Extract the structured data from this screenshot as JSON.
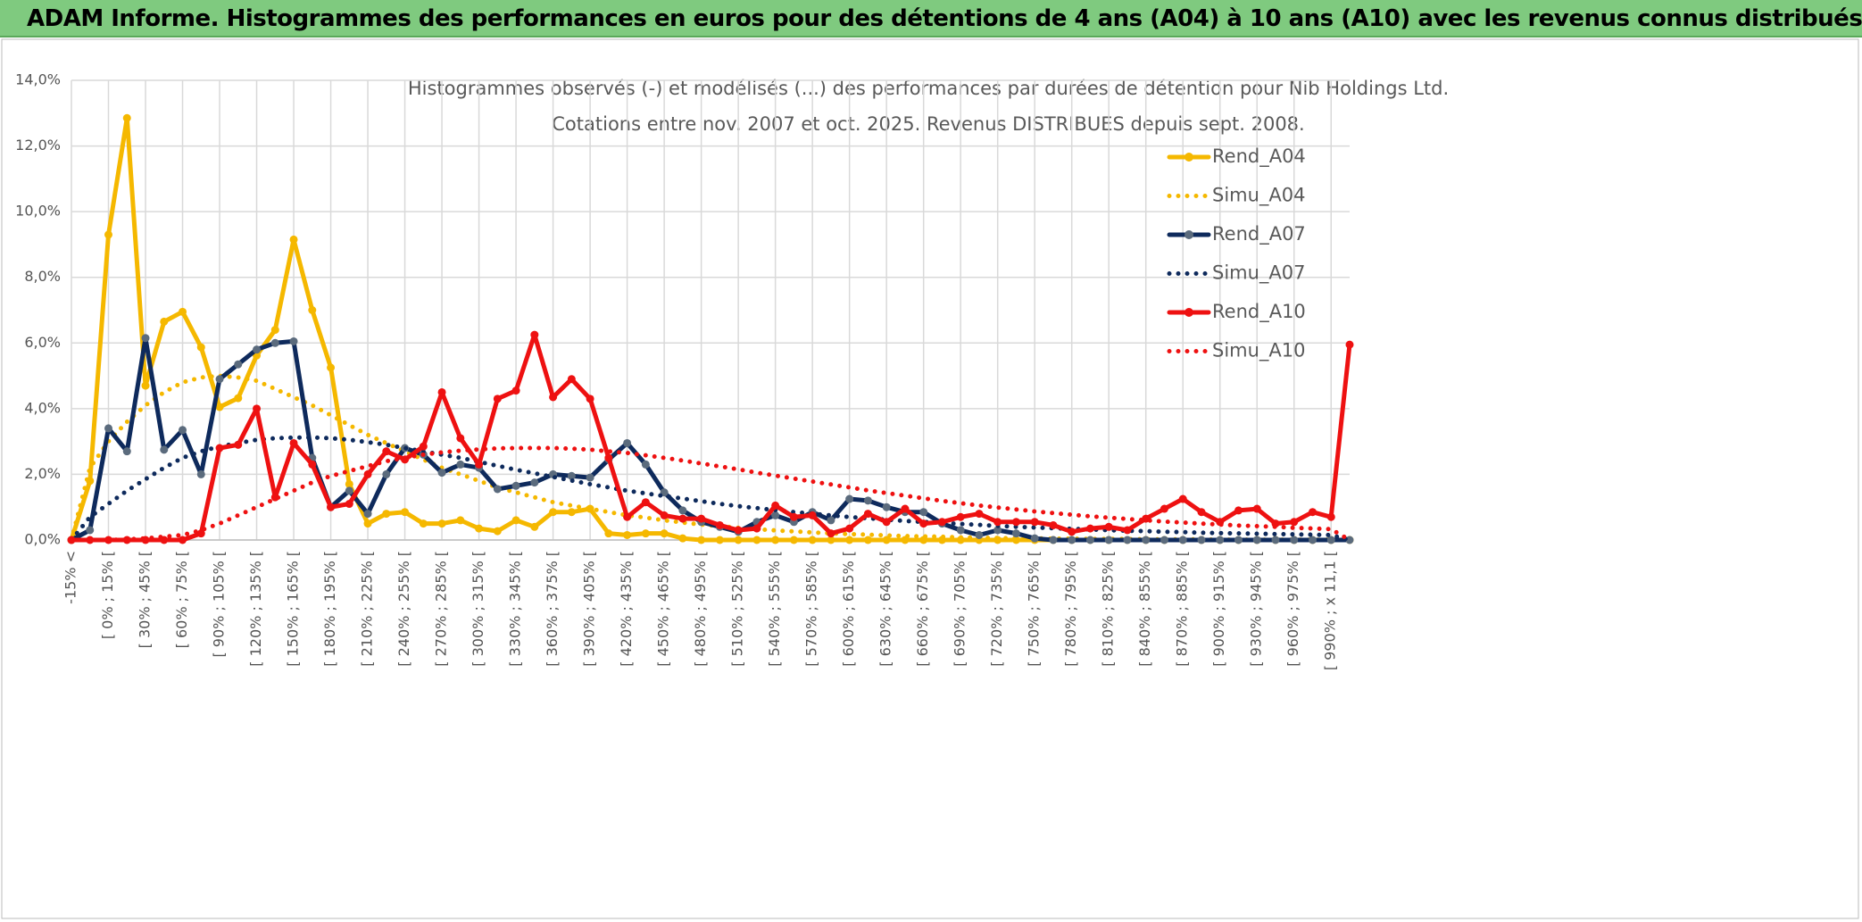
{
  "header": {
    "title": "ADAM Informe. Histogrammes des performances en euros pour des détentions de 4 ans (A04) à 10 ans (A10) avec les revenus connus distribués"
  },
  "chart_data": {
    "type": "line",
    "title": "Histogrammes observés (-) et modélisés (...) des performances par durées de détention pour Nib Holdings Ltd.",
    "subtitle": "Cotations entre nov. 2007 et oct. 2025. Revenus DISTRIBUES depuis sept. 2008.",
    "categories": [
      "-15% <",
      null,
      "[ 0% ; 15% [",
      null,
      "[ 30% ; 45% [",
      null,
      "[ 60% ; 75% [",
      null,
      "[ 90% ; 105% [",
      null,
      "[ 120% ; 135% [",
      null,
      "[ 150% ; 165% [",
      null,
      "[ 180% ; 195% [",
      null,
      "[ 210% ; 225% [",
      null,
      "[ 240% ; 255% [",
      null,
      "[ 270% ; 285% [",
      null,
      "[ 300% ; 315% [",
      null,
      "[ 330% ; 345% [",
      null,
      "[ 360% ; 375% [",
      null,
      "[ 390% ; 405% [",
      null,
      "[ 420% ; 435% [",
      null,
      "[ 450% ; 465% [",
      null,
      "[ 480% ; 495% [",
      null,
      "[ 510% ; 525% [",
      null,
      "[ 540% ; 555% [",
      null,
      "[ 570% ; 585% [",
      null,
      "[ 600% ; 615% [",
      null,
      "[ 630% ; 645% [",
      null,
      "[ 660% ; 675% [",
      null,
      "[ 690% ; 705% [",
      null,
      "[ 720% ; 735% [",
      null,
      "[ 750% ; 765% [",
      null,
      "[ 780% ; 795% [",
      null,
      "[ 810% ; 825% [",
      null,
      "[ 840% ; 855% [",
      null,
      "[ 870% ; 885% [",
      null,
      "[ 900% ; 915% [",
      null,
      "[ 930% ; 945% [",
      null,
      "[ 960% ; 975% [",
      null,
      "[ 990% ; x 11,1 [",
      null
    ],
    "series": [
      {
        "name": "Rend_A04",
        "color": "#f5b800",
        "style": "solid",
        "values": [
          0,
          1.8,
          9.3,
          12.85,
          4.7,
          6.65,
          6.95,
          5.87,
          4.05,
          4.32,
          5.62,
          6.4,
          9.15,
          7.0,
          5.25,
          1.7,
          0.5,
          0.8,
          0.85,
          0.5,
          0.5,
          0.6,
          0.35,
          0.27,
          0.6,
          0.4,
          0.85,
          0.85,
          0.95,
          0.2,
          0.15,
          0.2,
          0.2,
          0.05,
          0,
          0,
          0,
          0,
          0,
          0,
          0,
          0,
          0,
          0,
          0,
          0,
          0,
          0,
          0,
          0,
          0,
          0,
          0,
          0,
          0,
          0,
          0,
          0,
          0,
          0,
          0,
          0,
          0,
          0,
          0,
          0,
          0,
          0,
          0,
          0
        ]
      },
      {
        "name": "Simu_A04",
        "color": "#f5b800",
        "style": "dotted",
        "values": [
          0,
          2.2,
          3.0,
          3.6,
          4.1,
          4.5,
          4.8,
          4.95,
          5.0,
          4.95,
          4.85,
          4.6,
          4.35,
          4.1,
          3.8,
          3.5,
          3.2,
          2.95,
          2.7,
          2.45,
          2.2,
          2.0,
          1.8,
          1.6,
          1.45,
          1.3,
          1.15,
          1.05,
          0.95,
          0.85,
          0.75,
          0.68,
          0.6,
          0.53,
          0.47,
          0.42,
          0.37,
          0.33,
          0.29,
          0.26,
          0.23,
          0.2,
          0.18,
          0.16,
          0.14,
          0.12,
          0.11,
          0.1,
          0.08,
          0.07,
          0.06,
          0.05,
          0.05,
          0.04,
          0.04,
          0.03,
          0.03,
          0.03,
          0.02,
          0.02,
          0.02,
          0.02,
          0.01,
          0.01,
          0.01,
          0.01,
          0.01,
          0.01,
          0.01,
          0
        ]
      },
      {
        "name": "Rend_A07",
        "color": "#0e2a5c",
        "style": "solid",
        "values": [
          0,
          0.3,
          3.4,
          2.7,
          6.15,
          2.75,
          3.35,
          2.0,
          4.9,
          5.35,
          5.8,
          6.0,
          6.05,
          2.5,
          1.0,
          1.5,
          0.8,
          2.0,
          2.8,
          2.6,
          2.05,
          2.3,
          2.2,
          1.55,
          1.65,
          1.75,
          2.0,
          1.95,
          1.9,
          2.45,
          2.95,
          2.3,
          1.45,
          0.9,
          0.55,
          0.4,
          0.25,
          0.55,
          0.75,
          0.55,
          0.85,
          0.6,
          1.25,
          1.2,
          1.0,
          0.85,
          0.85,
          0.5,
          0.3,
          0.15,
          0.3,
          0.2,
          0.05,
          0,
          0,
          0,
          0,
          0,
          0,
          0,
          0,
          0,
          0,
          0,
          0,
          0,
          0,
          0,
          0,
          0
        ]
      },
      {
        "name": "Simu_A07",
        "color": "#0e2a5c",
        "style": "dotted",
        "values": [
          0,
          0.7,
          1.1,
          1.5,
          1.85,
          2.2,
          2.5,
          2.7,
          2.85,
          2.95,
          3.05,
          3.1,
          3.12,
          3.12,
          3.1,
          3.05,
          2.98,
          2.9,
          2.8,
          2.7,
          2.6,
          2.5,
          2.38,
          2.26,
          2.14,
          2.03,
          1.92,
          1.81,
          1.7,
          1.6,
          1.5,
          1.42,
          1.34,
          1.26,
          1.18,
          1.1,
          1.03,
          0.97,
          0.91,
          0.85,
          0.8,
          0.75,
          0.7,
          0.66,
          0.62,
          0.58,
          0.55,
          0.52,
          0.49,
          0.46,
          0.43,
          0.4,
          0.38,
          0.36,
          0.34,
          0.32,
          0.3,
          0.28,
          0.27,
          0.25,
          0.24,
          0.22,
          0.21,
          0.2,
          0.19,
          0.18,
          0.17,
          0.16,
          0.15,
          0
        ]
      },
      {
        "name": "Rend_A10",
        "color": "#ee1111",
        "style": "solid",
        "values": [
          0,
          0,
          0,
          0,
          0,
          0,
          0,
          0.2,
          2.8,
          2.9,
          4.0,
          1.3,
          2.95,
          2.3,
          1.0,
          1.1,
          2.0,
          2.7,
          2.45,
          2.85,
          4.5,
          3.1,
          2.3,
          4.3,
          4.55,
          6.25,
          4.35,
          4.9,
          4.3,
          2.5,
          0.7,
          1.15,
          0.75,
          0.65,
          0.65,
          0.45,
          0.3,
          0.35,
          1.05,
          0.7,
          0.75,
          0.2,
          0.35,
          0.8,
          0.55,
          0.95,
          0.5,
          0.55,
          0.7,
          0.8,
          0.55,
          0.55,
          0.55,
          0.45,
          0.25,
          0.35,
          0.4,
          0.3,
          0.65,
          0.95,
          1.25,
          0.85,
          0.55,
          0.9,
          0.95,
          0.5,
          0.55,
          0.85,
          0.7,
          5.95
        ]
      },
      {
        "name": "Simu_A10",
        "color": "#ee1111",
        "style": "dotted",
        "values": [
          0,
          0,
          0,
          0.02,
          0.05,
          0.1,
          0.15,
          0.3,
          0.5,
          0.75,
          1.0,
          1.25,
          1.5,
          1.75,
          1.95,
          2.1,
          2.25,
          2.4,
          2.5,
          2.6,
          2.67,
          2.72,
          2.76,
          2.79,
          2.8,
          2.8,
          2.8,
          2.78,
          2.75,
          2.7,
          2.65,
          2.58,
          2.5,
          2.42,
          2.33,
          2.24,
          2.15,
          2.05,
          1.96,
          1.87,
          1.78,
          1.69,
          1.6,
          1.51,
          1.43,
          1.35,
          1.27,
          1.19,
          1.12,
          1.05,
          0.99,
          0.93,
          0.87,
          0.82,
          0.77,
          0.72,
          0.68,
          0.64,
          0.6,
          0.56,
          0.53,
          0.5,
          0.47,
          0.44,
          0.42,
          0.4,
          0.37,
          0.35,
          0.33,
          0
        ]
      }
    ],
    "ylim": [
      0,
      14
    ],
    "yticks": [
      {
        "value": 0,
        "label": "0,0%"
      },
      {
        "value": 2,
        "label": "2,0%"
      },
      {
        "value": 4,
        "label": "4,0%"
      },
      {
        "value": 6,
        "label": "6,0%"
      },
      {
        "value": 8,
        "label": "8,0%"
      },
      {
        "value": 10,
        "label": "10,0%"
      },
      {
        "value": 12,
        "label": "12,0%"
      },
      {
        "value": 14,
        "label": "14,0%"
      }
    ],
    "grid": true,
    "legend": "right"
  }
}
